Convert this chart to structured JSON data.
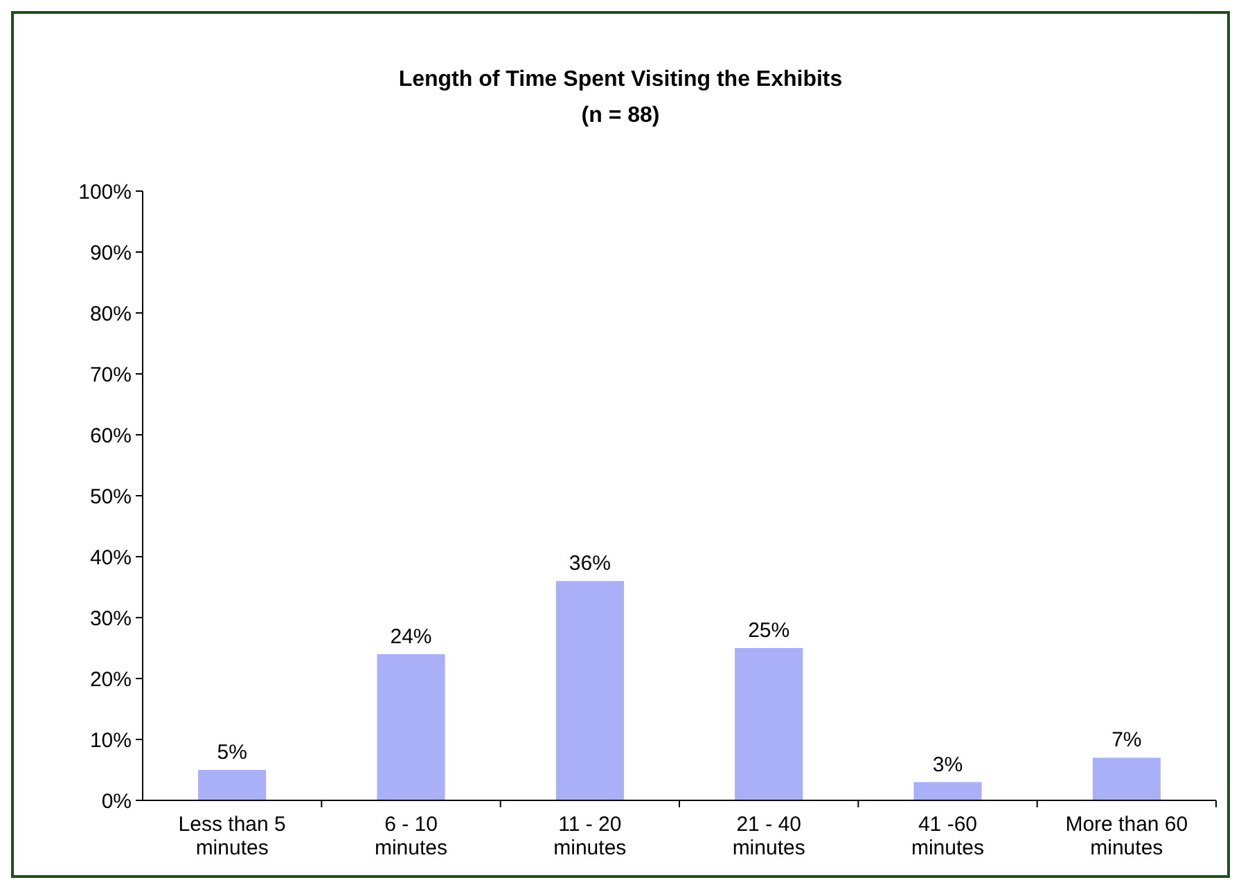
{
  "chart_data": {
    "type": "bar",
    "title": "Length of Time Spent Visiting the Exhibits",
    "subtitle": "(n = 88)",
    "categories": [
      "Less than 5 minutes",
      "6 - 10 minutes",
      "11 - 20 minutes",
      "21 - 40 minutes",
      "41 -60 minutes",
      "More than 60 minutes"
    ],
    "values": [
      5,
      24,
      36,
      25,
      3,
      7
    ],
    "value_labels": [
      "5%",
      "24%",
      "36%",
      "25%",
      "3%",
      "7%"
    ],
    "color": "#aab0f8",
    "ylim": [
      0,
      100
    ],
    "yticks": [
      {
        "value": 0,
        "label": "0%"
      },
      {
        "value": 10,
        "label": "10%"
      },
      {
        "value": 20,
        "label": "20%"
      },
      {
        "value": 30,
        "label": "30%"
      },
      {
        "value": 40,
        "label": "40%"
      },
      {
        "value": 50,
        "label": "50%"
      },
      {
        "value": 60,
        "label": "60%"
      },
      {
        "value": 70,
        "label": "70%"
      },
      {
        "value": 80,
        "label": "80%"
      },
      {
        "value": 90,
        "label": "90%"
      },
      {
        "value": 100,
        "label": "100%"
      }
    ],
    "grid": false
  }
}
